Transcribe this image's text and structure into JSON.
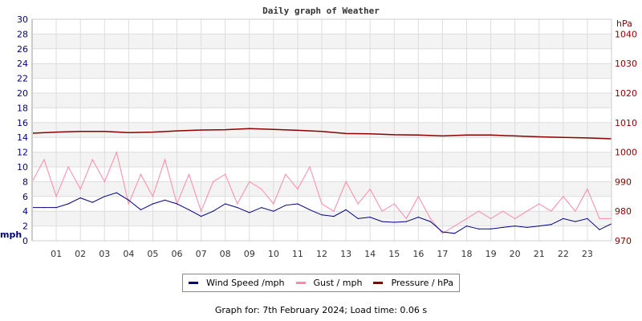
{
  "chart_data": {
    "type": "line",
    "title": "Daily graph of Weather",
    "ylabel": "mph",
    "ylabel_right": "hPa",
    "ylim": [
      0,
      30
    ],
    "ylim_right": [
      970,
      1045
    ],
    "xlim": [
      0,
      24
    ],
    "x_tick_labels": [
      "01",
      "02",
      "03",
      "04",
      "05",
      "06",
      "07",
      "08",
      "09",
      "10",
      "11",
      "12",
      "13",
      "14",
      "15",
      "16",
      "17",
      "18",
      "19",
      "20",
      "21",
      "22",
      "23"
    ],
    "y_ticks": [
      0,
      2,
      4,
      6,
      8,
      10,
      12,
      14,
      16,
      18,
      20,
      22,
      24,
      26,
      28,
      30
    ],
    "y_ticks_right": [
      970,
      980,
      990,
      1000,
      1010,
      1020,
      1030,
      1040
    ],
    "grid": true,
    "legend_placement": "bottom",
    "series": [
      {
        "name": "Wind Speed /mph",
        "color": "#000080",
        "axis": "left",
        "x": [
          0,
          0.5,
          1,
          1.5,
          2,
          2.5,
          3,
          3.5,
          4,
          4.5,
          5,
          5.5,
          6,
          6.5,
          7,
          7.5,
          8,
          8.5,
          9,
          9.5,
          10,
          10.5,
          11,
          11.5,
          12,
          12.5,
          13,
          13.5,
          14,
          14.5,
          15,
          15.5,
          16,
          16.5,
          17,
          17.5,
          18,
          18.5,
          19,
          19.5,
          20,
          20.5,
          21,
          21.5,
          22,
          22.5,
          23,
          23.5,
          24
        ],
        "values": [
          4.5,
          4.5,
          4.5,
          5,
          5.8,
          5.2,
          6,
          6.5,
          5.5,
          4.2,
          5,
          5.5,
          5,
          4.2,
          3.3,
          4,
          5,
          4.5,
          3.8,
          4.5,
          4,
          4.8,
          5,
          4.2,
          3.5,
          3.3,
          4.2,
          3,
          3.2,
          2.6,
          2.5,
          2.6,
          3.2,
          2.6,
          1.2,
          1,
          2,
          1.6,
          1.6,
          1.8,
          2,
          1.8,
          2,
          2.2,
          3,
          2.6,
          3,
          1.5,
          2.3
        ]
      },
      {
        "name": "Gust / mph",
        "color": "#ff88aa",
        "axis": "left",
        "x": [
          0,
          0.5,
          1,
          1.5,
          2,
          2.5,
          3,
          3.5,
          4,
          4.5,
          5,
          5.5,
          6,
          6.5,
          7,
          7.5,
          8,
          8.5,
          9,
          9.5,
          10,
          10.5,
          11,
          11.5,
          12,
          12.5,
          13,
          13.5,
          14,
          14.5,
          15,
          15.5,
          16,
          16.5,
          17,
          17.5,
          18,
          18.5,
          19,
          19.5,
          20,
          20.5,
          21,
          21.5,
          22,
          22.5,
          23,
          23.5,
          24
        ],
        "values": [
          8,
          11,
          6,
          10,
          7,
          11,
          8,
          12,
          5,
          9,
          6,
          11,
          5,
          9,
          4,
          8,
          9,
          5,
          8,
          7,
          5,
          9,
          7,
          10,
          5,
          4,
          8,
          5,
          7,
          4,
          5,
          3,
          6,
          3,
          1,
          2,
          3,
          4,
          3,
          4,
          3,
          4,
          5,
          4,
          6,
          4,
          7,
          3,
          3
        ]
      },
      {
        "name": "Pressure / hPa",
        "color": "#8b0000",
        "axis": "right",
        "x": [
          0,
          1,
          2,
          3,
          4,
          5,
          6,
          7,
          8,
          9,
          10,
          11,
          12,
          13,
          14,
          15,
          16,
          17,
          18,
          19,
          20,
          21,
          22,
          23,
          24
        ],
        "values": [
          1006.4,
          1006.8,
          1007,
          1007,
          1006.6,
          1006.8,
          1007.2,
          1007.5,
          1007.6,
          1008,
          1007.7,
          1007.4,
          1007,
          1006.3,
          1006.2,
          1005.9,
          1005.8,
          1005.5,
          1005.8,
          1005.8,
          1005.5,
          1005.2,
          1005,
          1004.8,
          1004.5
        ]
      }
    ]
  },
  "footer": "Graph for: 7th February 2024; Load time: 0.06 s"
}
